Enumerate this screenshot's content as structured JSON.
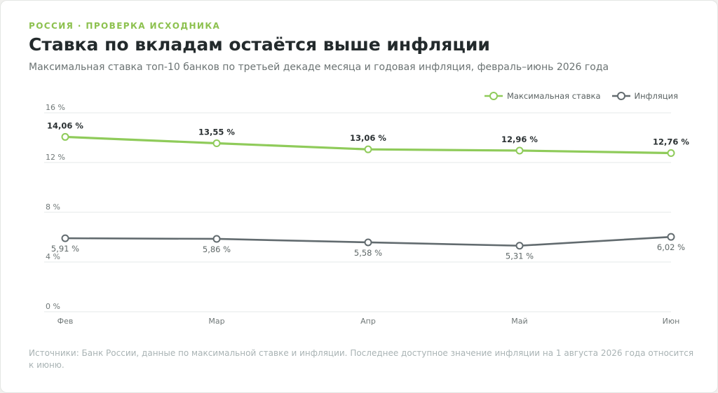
{
  "header": {
    "kicker": "РОССИЯ · ПРОВЕРКА ИСХОДНИКА",
    "title": "Ставка по вкладам остаётся выше инфляции",
    "subtitle": "Максимальная ставка топ-10 банков по третьей декаде месяца и годовая инфляция, февраль–июнь 2026 года"
  },
  "colors": {
    "rate": "#8fcb5a",
    "inflation": "#626b6f",
    "grid": "#e6e9e8"
  },
  "chart_data": {
    "type": "line",
    "categories": [
      "Фев",
      "Мар",
      "Апр",
      "Май",
      "Июн"
    ],
    "series": [
      {
        "name": "Максимальная ставка",
        "values": [
          14.06,
          13.55,
          13.06,
          12.96,
          12.76
        ],
        "labels": [
          "14,06 %",
          "13,55 %",
          "13,06 %",
          "12,96 %",
          "12,76 %"
        ]
      },
      {
        "name": "Инфляция",
        "values": [
          5.91,
          5.86,
          5.58,
          5.31,
          6.02
        ],
        "labels": [
          "5,91 %",
          "5,86 %",
          "5,58 %",
          "5,31 %",
          "6,02 %"
        ]
      }
    ],
    "ylim": [
      0,
      16
    ],
    "yticks": [
      0,
      4,
      8,
      12,
      16
    ],
    "ytick_labels": [
      "0 %",
      "4 %",
      "8 %",
      "12 %",
      "16 %"
    ],
    "grid": true,
    "legend_position": "top-right"
  },
  "footer": {
    "source": "Источники: Банк России, данные по максимальной ставке и инфляции. Последнее доступное значение инфляции на 1 августа 2026 года относится к июню."
  }
}
